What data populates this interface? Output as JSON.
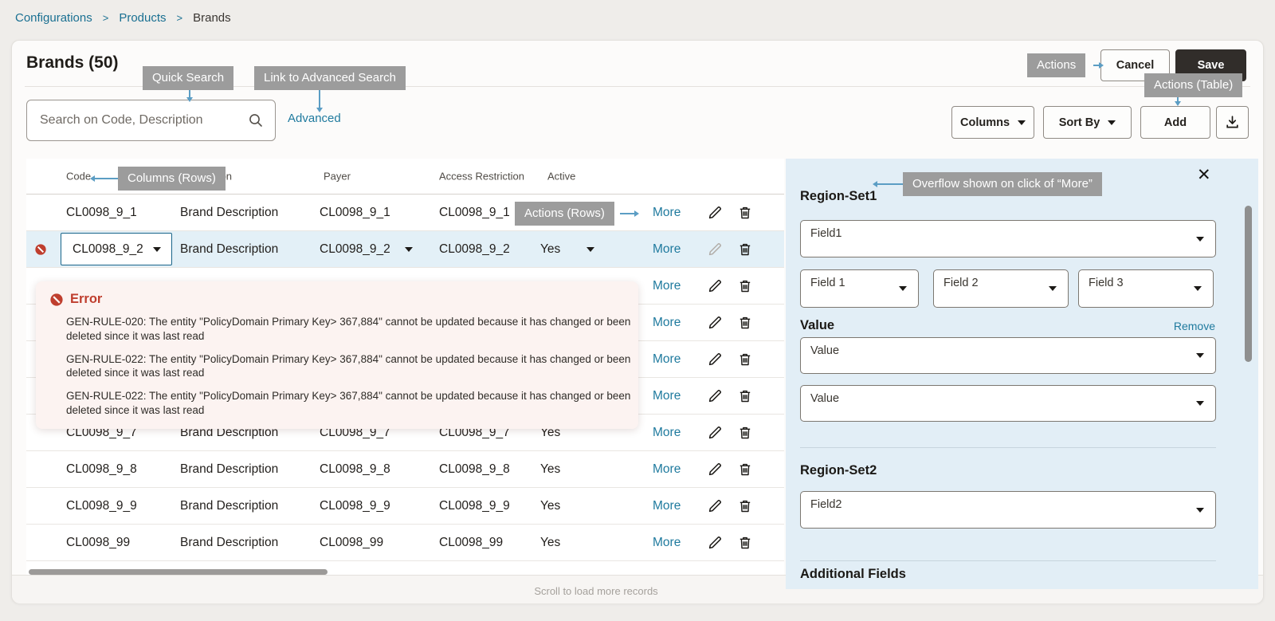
{
  "breadcrumb": {
    "separator": ">",
    "items": [
      "Configurations",
      "Products",
      "Brands"
    ]
  },
  "header": {
    "title": "Brands (50)",
    "cancel": "Cancel",
    "save": "Save"
  },
  "toolbar": {
    "search_placeholder": "Search on Code, Description",
    "advanced": "Advanced",
    "columns": "Columns",
    "sort_by": "Sort By",
    "add": "Add"
  },
  "annotations": {
    "quick_search": "Quick Search",
    "link_advanced": "Link to Advanced Search",
    "actions": "Actions",
    "actions_table": "Actions (Table)",
    "columns_rows": "Columns (Rows)",
    "actions_rows": "Actions (Rows)",
    "overflow": "Overflow shown on click of “More”"
  },
  "table": {
    "headers": [
      "Code",
      "Description",
      "Payer",
      "Access Restriction",
      "Active"
    ],
    "more_label": "More",
    "footer_hint": "Scroll to load more records",
    "rows": [
      {
        "code": "CL0098_9_1",
        "description": "Brand Description",
        "payer": "CL0098_9_1",
        "access": "CL0098_9_1",
        "active": ""
      },
      {
        "code": "CL0098_9_2",
        "description": "Brand Description",
        "payer": "CL0098_9_2",
        "access": "CL0098_9_2",
        "active": "Yes",
        "selected": true
      },
      {
        "code": "",
        "description": "",
        "payer": "",
        "access": "",
        "active": "",
        "covered": true
      },
      {
        "code": "",
        "description": "",
        "payer": "",
        "access": "",
        "active": "",
        "covered": true
      },
      {
        "code": "",
        "description": "",
        "payer": "",
        "access": "",
        "active": "",
        "covered": true
      },
      {
        "code": "",
        "description": "",
        "payer": "",
        "access": "",
        "active": "",
        "covered": true
      },
      {
        "code": "CL0098_9_7",
        "description": "Brand Description",
        "payer": "CL0098_9_7",
        "access": "CL0098_9_7",
        "active": "Yes"
      },
      {
        "code": "CL0098_9_8",
        "description": "Brand Description",
        "payer": "CL0098_9_8",
        "access": "CL0098_9_8",
        "active": "Yes"
      },
      {
        "code": "CL0098_9_9",
        "description": "Brand Description",
        "payer": "CL0098_9_9",
        "access": "CL0098_9_9",
        "active": "Yes"
      },
      {
        "code": "CL0098_99",
        "description": "Brand Description",
        "payer": "CL0098_99",
        "access": "CL0098_99",
        "active": "Yes"
      }
    ]
  },
  "error": {
    "title": "Error",
    "messages": [
      "GEN-RULE-020: The entity \"PolicyDomain Primary Key> 367,884\" cannot be  updated because it has changed or been deleted since it was last read",
      "GEN-RULE-022: The entity \"PolicyDomain Primary Key> 367,884\" cannot be  updated because it has changed or been deleted since it was last read",
      "GEN-RULE-022: The entity \"PolicyDomain Primary Key> 367,884\" cannot be  updated because it has changed or been deleted since it was last read"
    ]
  },
  "panel": {
    "close_icon": "✕",
    "region_set1": {
      "title": "Region-Set1",
      "primary_field": "Field1",
      "fields": [
        "Field 1",
        "Field 2",
        "Field 3"
      ]
    },
    "value_section": {
      "title": "Value",
      "remove": "Remove",
      "values": [
        "Value",
        "Value"
      ]
    },
    "region_set2": {
      "title": "Region-Set2",
      "primary_field": "Field2"
    },
    "additional_fields": "Additional Fields"
  },
  "colors": {
    "link": "#1f7a9e",
    "error_red": "#bf3e2e",
    "annotation_bg": "#9c9c9c",
    "arrow_blue": "#5b9dc4",
    "panel_bg": "#e2eef6",
    "selected_row_bg": "#e3f0f7",
    "save_button_bg": "#312d2a"
  }
}
